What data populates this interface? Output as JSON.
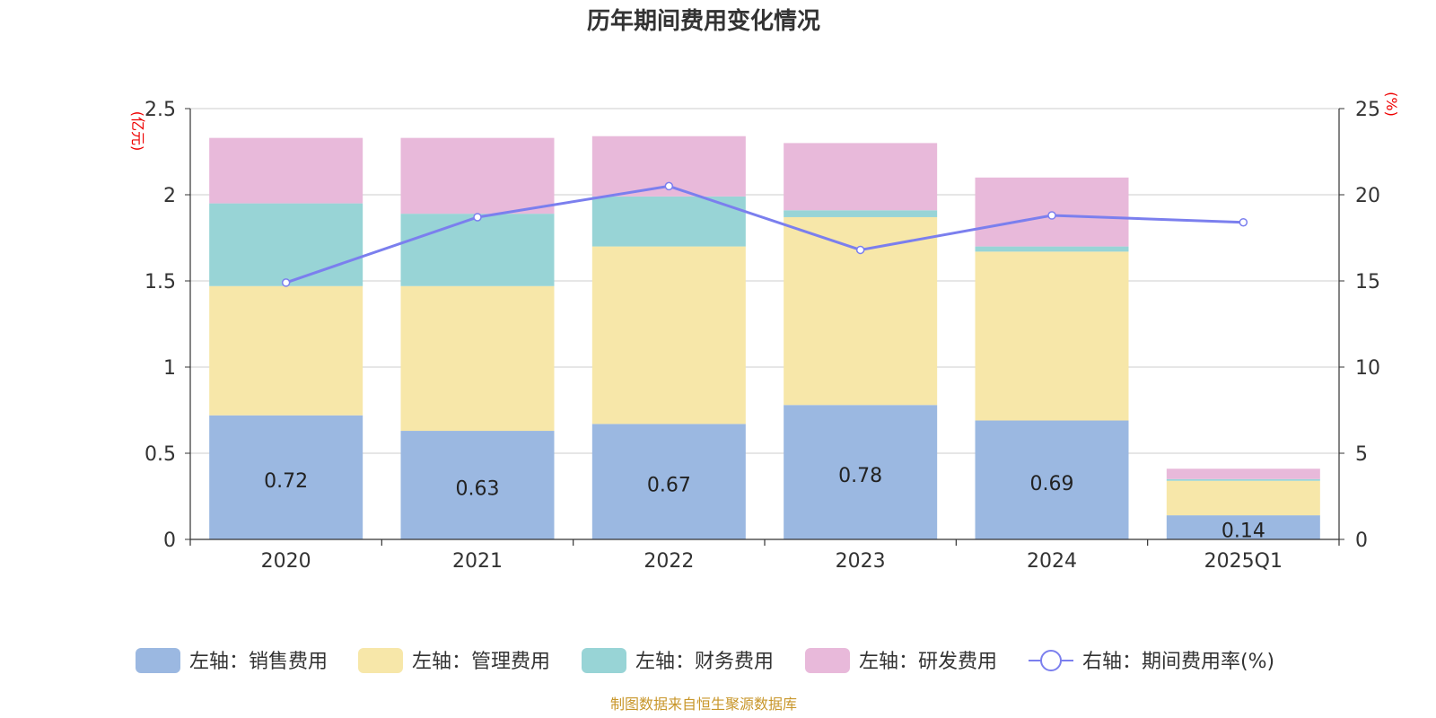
{
  "chart_data": {
    "type": "bar",
    "stacked": true,
    "title": "历年期间费用变化情况",
    "categories": [
      "2020",
      "2021",
      "2022",
      "2023",
      "2024",
      "2025Q1"
    ],
    "left_axis": {
      "unit": "(亿元)",
      "ylim": [
        0,
        2.5
      ],
      "ticks": [
        "0",
        "0.5",
        "1",
        "1.5",
        "2",
        "2.5"
      ]
    },
    "right_axis": {
      "unit": "(%)",
      "ylim": [
        0,
        25
      ],
      "ticks": [
        "0",
        "5",
        "10",
        "15",
        "20",
        "25"
      ]
    },
    "series": [
      {
        "name": "左轴：销售费用",
        "axis": "left",
        "color": "#9bb8e1",
        "values": [
          0.72,
          0.63,
          0.67,
          0.78,
          0.69,
          0.14
        ],
        "labels": [
          "0.72",
          "0.63",
          "0.67",
          "0.78",
          "0.69",
          "0.14"
        ]
      },
      {
        "name": "左轴：管理费用",
        "axis": "left",
        "color": "#f7e7a9",
        "values": [
          0.75,
          0.84,
          1.03,
          1.09,
          0.98,
          0.2
        ]
      },
      {
        "name": "左轴：财务费用",
        "axis": "left",
        "color": "#98d4d6",
        "values": [
          0.48,
          0.42,
          0.29,
          0.04,
          0.03,
          0.01
        ]
      },
      {
        "name": "左轴：研发费用",
        "axis": "left",
        "color": "#e8b9da",
        "values": [
          0.38,
          0.44,
          0.35,
          0.39,
          0.4,
          0.06
        ]
      }
    ],
    "line_series": {
      "name": "右轴：期间费用率(%)",
      "axis": "right",
      "color": "#7b7fee",
      "values": [
        14.9,
        18.7,
        20.5,
        16.8,
        18.8,
        18.4
      ]
    },
    "grid": true,
    "legend_position": "bottom"
  },
  "source": "制图数据来自恒生聚源数据库"
}
